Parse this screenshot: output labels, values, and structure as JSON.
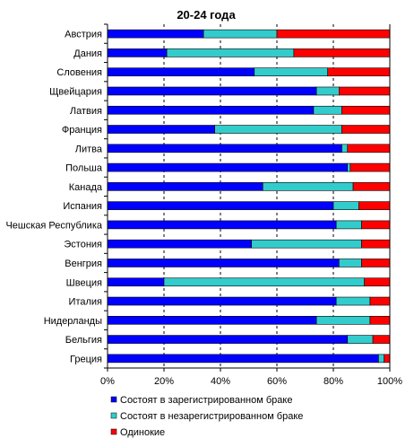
{
  "chart_data": {
    "type": "bar",
    "orientation": "horizontal",
    "stacked": "percent",
    "title": "20-24 года",
    "categories": [
      "Австрия",
      "Дания",
      "Словения",
      "Щвейцария",
      "Латвия",
      "Франция",
      "Литва",
      "Польша",
      "Канада",
      "Испания",
      "Чешская Республика",
      "Эстония",
      "Венгрия",
      "Швеция",
      "Италия",
      "Нидерланды",
      "Бельгия",
      "Греция"
    ],
    "series": [
      {
        "name": "Состоят в зарегистрированном браке",
        "color": "#0000ff",
        "values": [
          34,
          21,
          52,
          74,
          73,
          38,
          83,
          85,
          55,
          80,
          81,
          51,
          82,
          20,
          81,
          74,
          85,
          96
        ]
      },
      {
        "name": "Состоят в незарегистрированном браке",
        "color": "#33cccc",
        "values": [
          26,
          45,
          26,
          8,
          10,
          45,
          2,
          1,
          32,
          9,
          9,
          39,
          8,
          71,
          12,
          19,
          9,
          2
        ]
      },
      {
        "name": "Одинокие",
        "color": "#ff0000",
        "values": [
          40,
          34,
          22,
          18,
          17,
          17,
          15,
          14,
          13,
          11,
          10,
          10,
          10,
          9,
          7,
          7,
          6,
          2
        ]
      }
    ],
    "xlim": [
      0,
      100
    ],
    "xticks": [
      "0%",
      "20%",
      "40%",
      "60%",
      "80%",
      "100%"
    ],
    "grid": "vertical dashed",
    "legend_position": "bottom"
  }
}
